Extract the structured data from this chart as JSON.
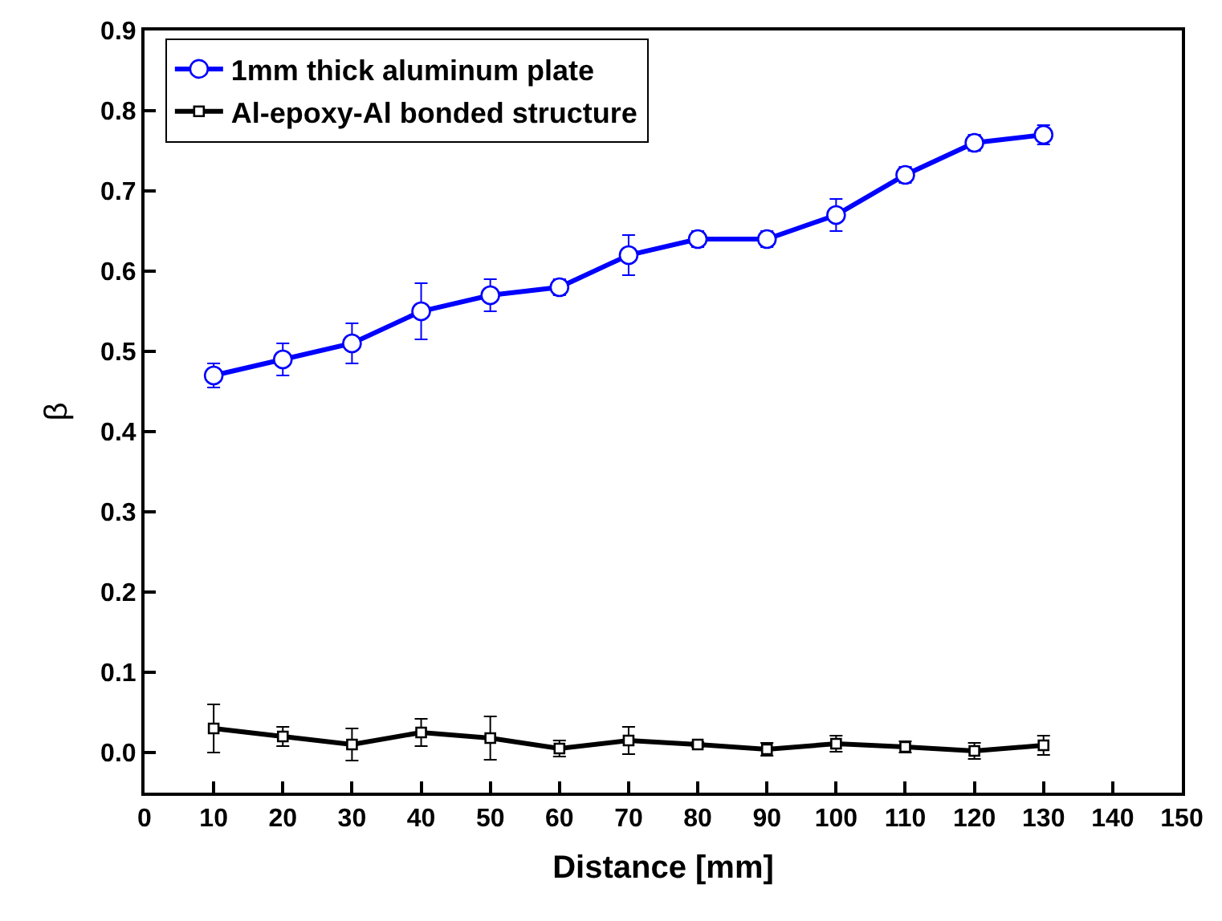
{
  "chart_data": {
    "type": "line",
    "xlabel": "Distance [mm]",
    "ylabel": "β",
    "x": [
      10,
      20,
      30,
      40,
      50,
      60,
      70,
      80,
      90,
      100,
      110,
      120,
      130
    ],
    "series": [
      {
        "name": "1mm thick aluminum plate",
        "color": "#0000ff",
        "marker": "circle",
        "values": [
          0.47,
          0.49,
          0.51,
          0.55,
          0.57,
          0.58,
          0.62,
          0.64,
          0.64,
          0.67,
          0.72,
          0.76,
          0.77
        ],
        "errors": [
          0.015,
          0.02,
          0.025,
          0.035,
          0.02,
          0.01,
          0.025,
          0.01,
          0.01,
          0.02,
          0.01,
          0.01,
          0.012
        ]
      },
      {
        "name": "Al-epoxy-Al bonded structure",
        "color": "#000000",
        "marker": "square",
        "values": [
          0.03,
          0.02,
          0.01,
          0.025,
          0.018,
          0.005,
          0.015,
          0.01,
          0.004,
          0.011,
          0.007,
          0.002,
          0.009
        ],
        "errors": [
          0.03,
          0.012,
          0.02,
          0.017,
          0.027,
          0.01,
          0.017,
          0.003,
          0.008,
          0.01,
          0.007,
          0.01,
          0.012
        ]
      }
    ],
    "xlim": [
      0,
      150
    ],
    "xticks": [
      0,
      10,
      20,
      30,
      40,
      50,
      60,
      70,
      80,
      90,
      100,
      110,
      120,
      130,
      140,
      150
    ],
    "ylim": [
      -0.05,
      0.9
    ],
    "yticks": [
      {
        "value": 0,
        "label": "0.0"
      },
      0.1,
      0.2,
      0.3,
      0.4,
      0.5,
      0.6,
      0.7,
      0.8,
      0.9
    ],
    "legend": "top left",
    "line_style": "solid"
  }
}
